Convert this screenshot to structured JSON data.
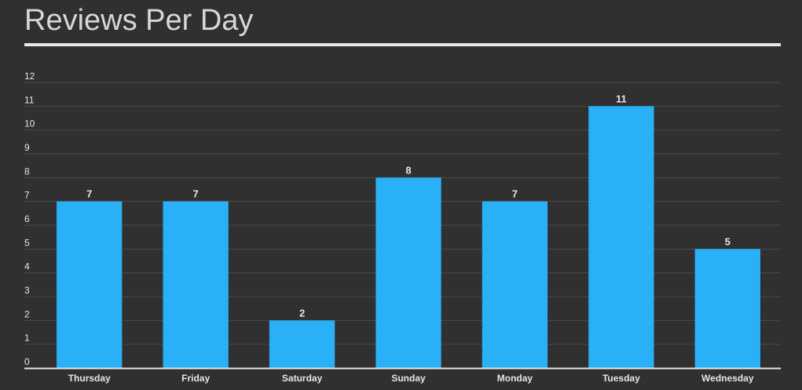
{
  "title": "Reviews Per Day",
  "chart_data": {
    "type": "bar",
    "title": "Reviews Per Day",
    "categories": [
      "Thursday",
      "Friday",
      "Saturday",
      "Sunday",
      "Monday",
      "Tuesday",
      "Wednesday"
    ],
    "values": [
      7,
      7,
      2,
      8,
      7,
      11,
      5
    ],
    "y_ticks": [
      "0",
      "1",
      "2",
      "3",
      "4",
      "5",
      "6",
      "7",
      "8",
      "9",
      "10",
      "11",
      "12"
    ],
    "ylim": [
      0,
      12
    ],
    "xlabel": "",
    "ylabel": "",
    "grid": true,
    "data_labels": true,
    "legend": "none",
    "colors": {
      "background": "#303030",
      "bar": "#29b0f7",
      "grid": "#4a4a4a",
      "axis": "#e6e6e6",
      "text": "#e6e6e6",
      "title": "#d7d7d7"
    }
  }
}
